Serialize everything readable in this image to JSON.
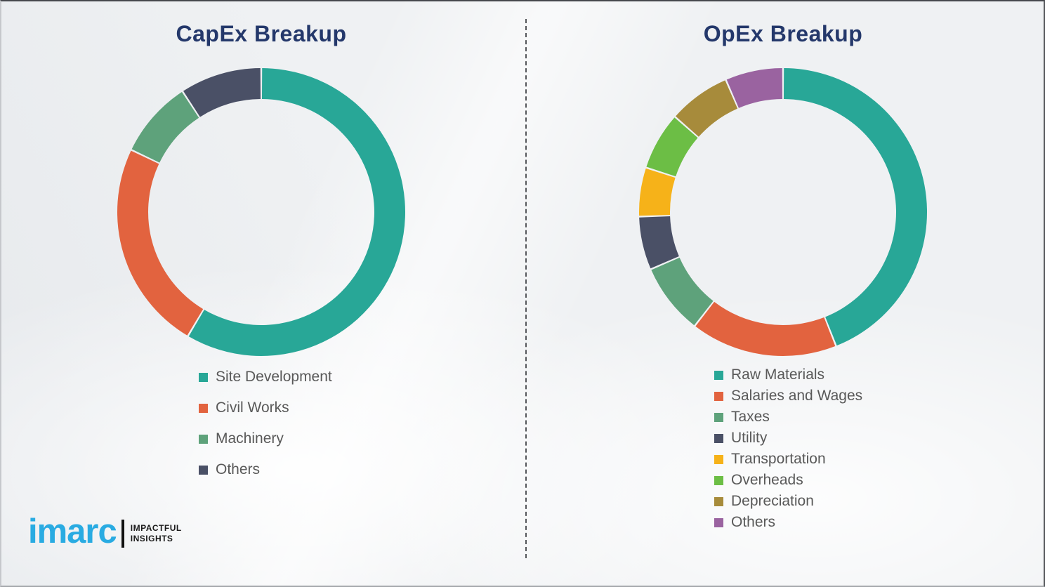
{
  "page": {
    "background_color": "#eff1f3",
    "divider_style": "vertical-dashed",
    "divider_color": "#55575b"
  },
  "chart_data": [
    {
      "type": "pie",
      "subtype": "donut",
      "title": "CapEx Breakup",
      "title_color": "#24386b",
      "legend_position": "below-left",
      "start_angle_deg": 0,
      "direction": "clockwise",
      "inner_radius_ratio": 0.785,
      "labels": [
        "Site Development",
        "Civil Works",
        "Machinery",
        "Others"
      ],
      "values": [
        58.5,
        23.6,
        8.7,
        9.2
      ],
      "unit": "percent",
      "colors": [
        "#28a797",
        "#e2633f",
        "#5ea27b",
        "#4a5066"
      ]
    },
    {
      "type": "pie",
      "subtype": "donut",
      "title": "OpEx Breakup",
      "title_color": "#24386b",
      "legend_position": "below-left",
      "start_angle_deg": 0,
      "direction": "clockwise",
      "inner_radius_ratio": 0.785,
      "labels": [
        "Raw Materials",
        "Salaries and Wages",
        "Taxes",
        "Utility",
        "Transportation",
        "Overheads",
        "Depreciation",
        "Others"
      ],
      "values": [
        44,
        16.5,
        8,
        6,
        5.5,
        6.5,
        7,
        6.5
      ],
      "unit": "percent",
      "colors": [
        "#28a797",
        "#e2633f",
        "#5ea27b",
        "#4a5066",
        "#f6b219",
        "#6cbe45",
        "#a78b3b",
        "#9a63a0"
      ]
    }
  ],
  "logo": {
    "brand": "imarc",
    "brand_color": "#29abe2",
    "tagline_line1": "IMPACTFUL",
    "tagline_line2": "INSIGHTS"
  }
}
